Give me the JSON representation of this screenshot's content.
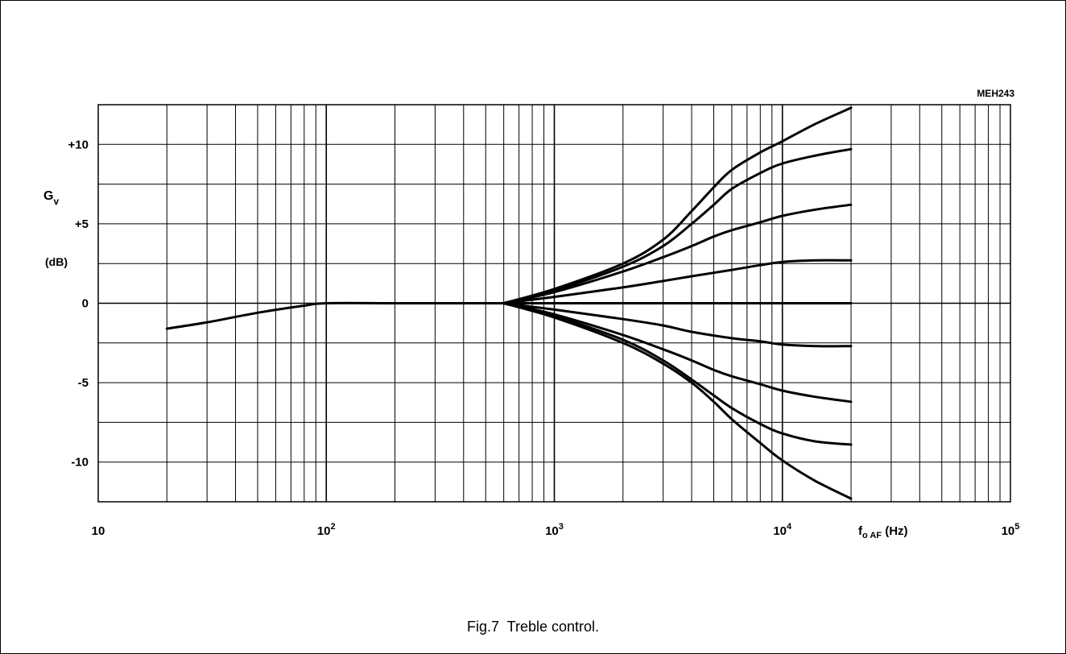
{
  "figure_code": "MEH243",
  "caption": "Fig.7  Treble control.",
  "chart_data": {
    "type": "line",
    "title": "",
    "ylabel_main": "G",
    "ylabel_sub": "v",
    "ylabel_unit": "(dB)",
    "xlabel_main": "f",
    "xlabel_sub": "o AF",
    "xlabel_unit": " (Hz)",
    "x_scale": "log",
    "xlim": [
      10,
      100000
    ],
    "ylim": [
      -12.5,
      12.5
    ],
    "grid": true,
    "x_tick_labels": [
      {
        "value": 10,
        "base": "10",
        "exp": ""
      },
      {
        "value": 100,
        "base": "10",
        "exp": "2"
      },
      {
        "value": 1000,
        "base": "10",
        "exp": "3"
      },
      {
        "value": 10000,
        "base": "10",
        "exp": "4"
      },
      {
        "value": 100000,
        "base": "10",
        "exp": "5"
      }
    ],
    "y_tick_labels": [
      {
        "value": 10,
        "label": "+10"
      },
      {
        "value": 5,
        "label": "+5"
      },
      {
        "value": 0,
        "label": "0"
      },
      {
        "value": -5,
        "label": "-5"
      },
      {
        "value": -10,
        "label": "-10"
      }
    ],
    "shared_low_curve": {
      "x": [
        20,
        30,
        50,
        80,
        100,
        200,
        400,
        600
      ],
      "y": [
        -1.6,
        -1.2,
        -0.6,
        -0.15,
        0,
        0,
        0,
        0
      ]
    },
    "series": [
      {
        "x": [
          600,
          1000,
          2000,
          3000,
          4000,
          5000,
          6000,
          8000,
          10000,
          14000,
          20000
        ],
        "y": [
          0,
          0.9,
          2.5,
          4.0,
          5.8,
          7.3,
          8.4,
          9.5,
          10.2,
          11.3,
          12.3
        ]
      },
      {
        "x": [
          600,
          1000,
          2000,
          3000,
          4000,
          5000,
          6000,
          8000,
          10000,
          14000,
          20000
        ],
        "y": [
          0,
          0.8,
          2.3,
          3.6,
          5.0,
          6.2,
          7.2,
          8.2,
          8.8,
          9.3,
          9.7
        ]
      },
      {
        "x": [
          600,
          1000,
          2000,
          3000,
          4000,
          5000,
          6000,
          8000,
          10000,
          14000,
          20000
        ],
        "y": [
          0,
          0.7,
          2.0,
          2.9,
          3.6,
          4.2,
          4.6,
          5.1,
          5.5,
          5.9,
          6.2
        ]
      },
      {
        "x": [
          600,
          1000,
          2000,
          3000,
          4000,
          6000,
          8000,
          10000,
          14000,
          20000
        ],
        "y": [
          0,
          0.4,
          1.0,
          1.4,
          1.7,
          2.1,
          2.4,
          2.6,
          2.7,
          2.7
        ]
      },
      {
        "x": [
          600,
          20000
        ],
        "y": [
          0,
          0
        ]
      },
      {
        "x": [
          600,
          1000,
          2000,
          3000,
          4000,
          6000,
          8000,
          10000,
          14000,
          20000
        ],
        "y": [
          0,
          -0.4,
          -1.0,
          -1.4,
          -1.8,
          -2.2,
          -2.4,
          -2.6,
          -2.7,
          -2.7
        ]
      },
      {
        "x": [
          600,
          1000,
          2000,
          3000,
          4000,
          5000,
          6000,
          8000,
          10000,
          14000,
          20000
        ],
        "y": [
          0,
          -0.7,
          -2.0,
          -2.9,
          -3.6,
          -4.2,
          -4.6,
          -5.1,
          -5.5,
          -5.9,
          -6.2
        ]
      },
      {
        "x": [
          600,
          1000,
          2000,
          3000,
          4000,
          5000,
          6000,
          8000,
          10000,
          14000,
          20000
        ],
        "y": [
          0,
          -0.8,
          -2.3,
          -3.6,
          -4.8,
          -5.8,
          -6.6,
          -7.6,
          -8.2,
          -8.7,
          -8.9
        ]
      },
      {
        "x": [
          600,
          1000,
          2000,
          3000,
          4000,
          5000,
          6000,
          8000,
          10000,
          14000,
          20000
        ],
        "y": [
          0,
          -0.9,
          -2.5,
          -3.8,
          -5.0,
          -6.2,
          -7.3,
          -8.8,
          -9.9,
          -11.2,
          -12.3
        ]
      }
    ]
  }
}
